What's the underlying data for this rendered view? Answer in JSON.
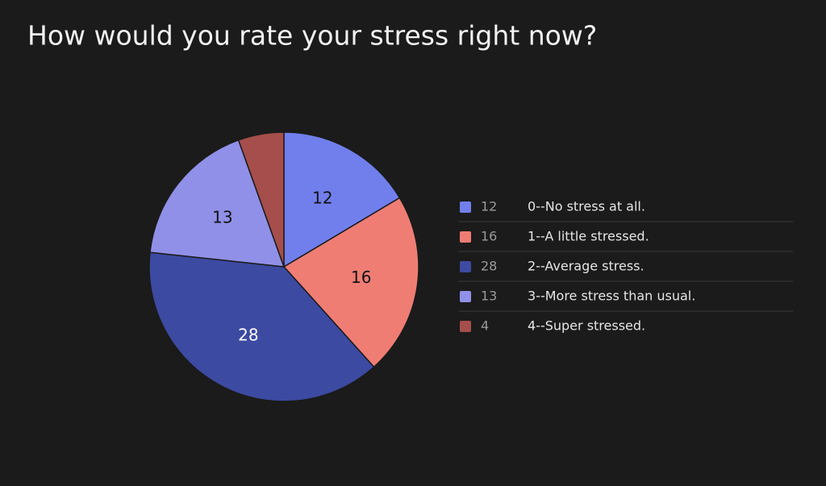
{
  "chart_data": {
    "type": "pie",
    "title": "How would you rate your stress right now?",
    "categories": [
      "0--No stress at all.",
      "1--A little stressed.",
      "2--Average stress.",
      "3--More stress than usual.",
      "4--Super stressed."
    ],
    "values": [
      12,
      16,
      28,
      13,
      4
    ],
    "colors": [
      "#717fec",
      "#ef7d74",
      "#3c4aa2",
      "#9090e8",
      "#a64e4b"
    ]
  }
}
